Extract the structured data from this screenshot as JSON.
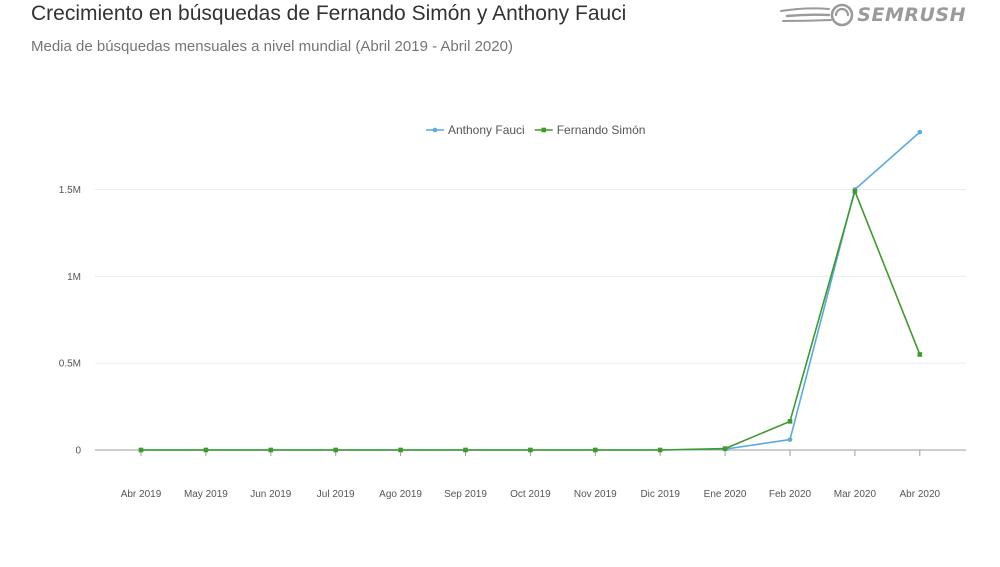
{
  "header": {
    "title": "Crecimiento en búsquedas de Fernando Simón y Anthony Fauci",
    "subtitle": "Media de búsquedas mensuales a nivel mundial (Abril 2019 - Abril 2020)",
    "logo_text": "SEMRUSH",
    "logo_color": "#9a9a9a"
  },
  "chart_data": {
    "type": "line",
    "title": "Crecimiento en búsquedas de Fernando Simón y Anthony Fauci",
    "subtitle": "Media de búsquedas mensuales a nivel mundial (Abril 2019 - Abril 2020)",
    "xlabel": "",
    "ylabel": "",
    "categories": [
      "Abr 2019",
      "May 2019",
      "Jun 2019",
      "Jul 2019",
      "Ago 2019",
      "Sep 2019",
      "Oct 2019",
      "Nov 2019",
      "Dic 2019",
      "Ene 2020",
      "Feb 2020",
      "Mar 2020",
      "Abr 2020"
    ],
    "ylim": [
      0,
      1900000
    ],
    "yticks": [
      0,
      500000,
      1000000,
      1500000
    ],
    "ytick_labels": [
      "0",
      "0.5M",
      "1M",
      "1.5M"
    ],
    "grid": true,
    "legend_position": "top-center",
    "series": [
      {
        "name": "Anthony Fauci",
        "color": "#5aabdf",
        "marker": "circle",
        "values": [
          0,
          0,
          0,
          0,
          0,
          0,
          0,
          0,
          0,
          5000,
          60000,
          1500000,
          1830000
        ]
      },
      {
        "name": "Fernando Simón",
        "color": "#3e9a2c",
        "marker": "square",
        "values": [
          0,
          0,
          0,
          0,
          0,
          0,
          0,
          0,
          0,
          8000,
          165000,
          1490000,
          550000
        ]
      }
    ]
  }
}
